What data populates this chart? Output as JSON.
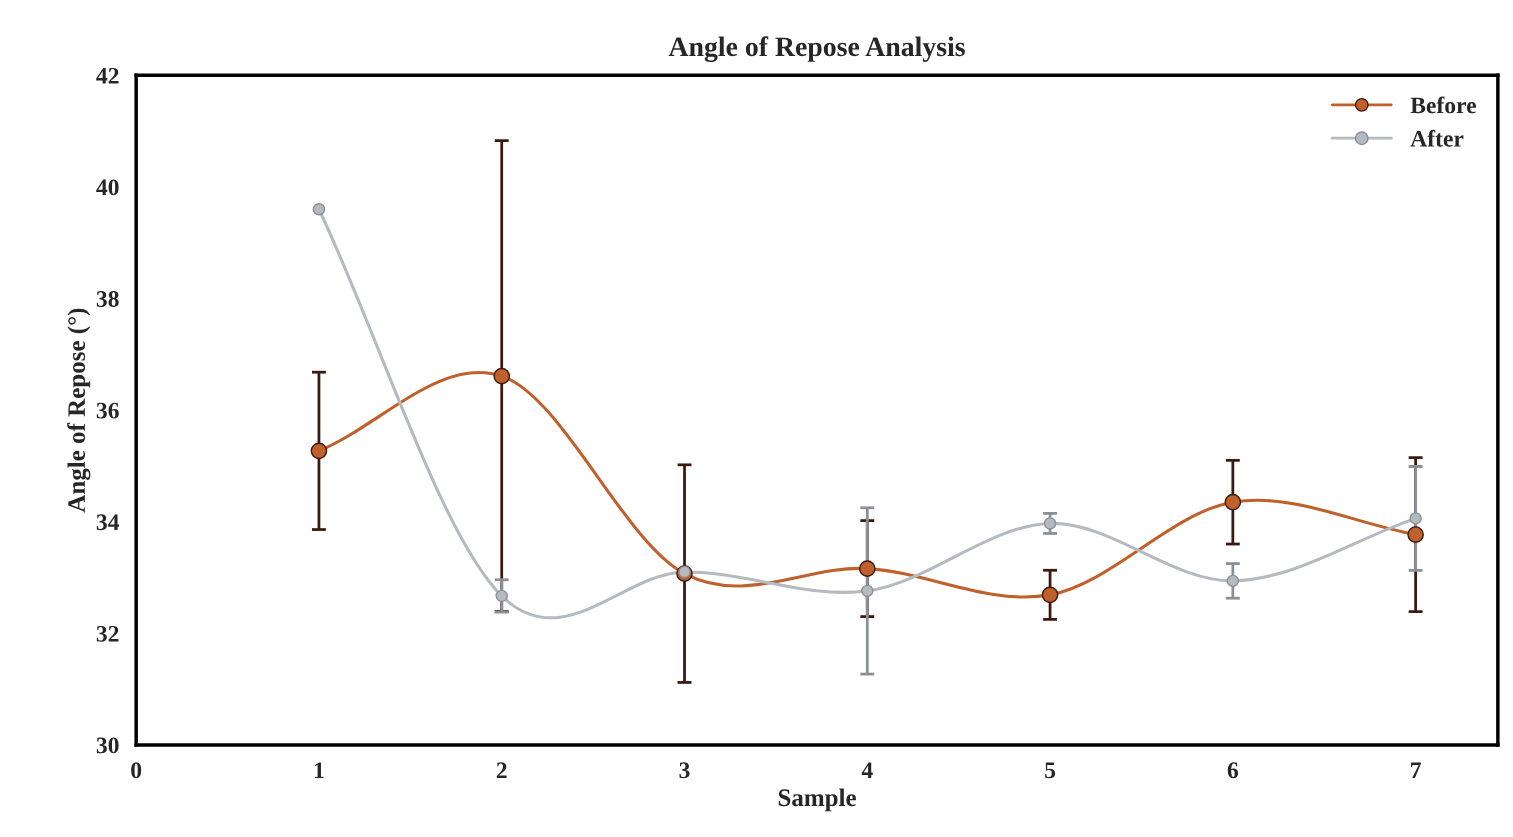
{
  "chart_data": {
    "type": "line",
    "title": "Angle of Repose Analysis",
    "xlabel": "Sample",
    "ylabel": "Angle of Repose (°)",
    "x": [
      1,
      2,
      3,
      4,
      5,
      6,
      7
    ],
    "series": [
      {
        "name": "Before",
        "color": "#c0602a",
        "values": [
          35.27,
          36.61,
          33.07,
          33.16,
          32.69,
          34.35,
          33.77
        ],
        "errors": [
          1.41,
          4.22,
          1.95,
          0.86,
          0.44,
          0.75,
          1.38
        ]
      },
      {
        "name": "After",
        "color": "#b4bac0",
        "values": [
          39.6,
          32.67,
          33.1,
          32.76,
          33.97,
          32.94,
          34.06
        ],
        "errors": [
          null,
          0.29,
          null,
          1.49,
          0.18,
          0.31,
          0.93
        ]
      }
    ],
    "xlim": [
      0,
      7.45
    ],
    "xticks": [
      0,
      1,
      2,
      3,
      4,
      5,
      6,
      7
    ],
    "ylim": [
      30,
      42
    ],
    "yticks": [
      30,
      32,
      34,
      36,
      38,
      40,
      42
    ],
    "grid": false,
    "legend": "top right",
    "marker": "circle",
    "line_style": "solid"
  }
}
